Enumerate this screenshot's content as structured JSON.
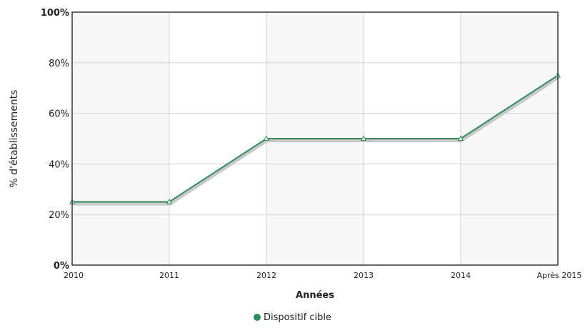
{
  "chart_data": {
    "type": "line",
    "categories": [
      "2010",
      "2011",
      "2012",
      "2013",
      "2014",
      "Après 2015"
    ],
    "series": [
      {
        "name": "Dispositif cible",
        "values": [
          25,
          25,
          50,
          50,
          50,
          75
        ],
        "color": "#2e8b57"
      }
    ],
    "ylim": [
      0,
      100
    ],
    "yticks": [
      "0%",
      "20%",
      "40%",
      "60%",
      "80%",
      "100%"
    ],
    "xlabel": "Années",
    "ylabel": "% d'établissements",
    "grid": true,
    "legend_position": "bottom"
  }
}
